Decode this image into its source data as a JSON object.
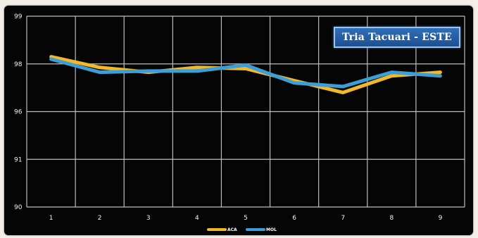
{
  "chart_data": {
    "type": "line",
    "title": "Tria Tacuari - ESTE",
    "x": [
      1,
      2,
      3,
      4,
      5,
      6,
      7,
      8,
      9
    ],
    "x_tick_labels": [
      "1",
      "2",
      "3",
      "4",
      "5",
      "6",
      "7",
      "8",
      "9"
    ],
    "y_tick_labels": [
      "90",
      "91",
      "96",
      "98",
      "99"
    ],
    "y_tick_values": [
      90,
      91,
      96,
      98,
      99
    ],
    "ylim": [
      90,
      99
    ],
    "grid": true,
    "legend_position": "bottom-center",
    "series": [
      {
        "name": "ACA",
        "color": "#f0b82a",
        "values": [
          98.15,
          97.85,
          97.65,
          97.85,
          97.8,
          97.3,
          96.8,
          97.5,
          97.65
        ]
      },
      {
        "name": "MOL",
        "color": "#3c9ed6",
        "values": [
          98.1,
          97.65,
          97.7,
          97.7,
          97.95,
          97.2,
          97.05,
          97.65,
          97.5
        ]
      }
    ]
  }
}
